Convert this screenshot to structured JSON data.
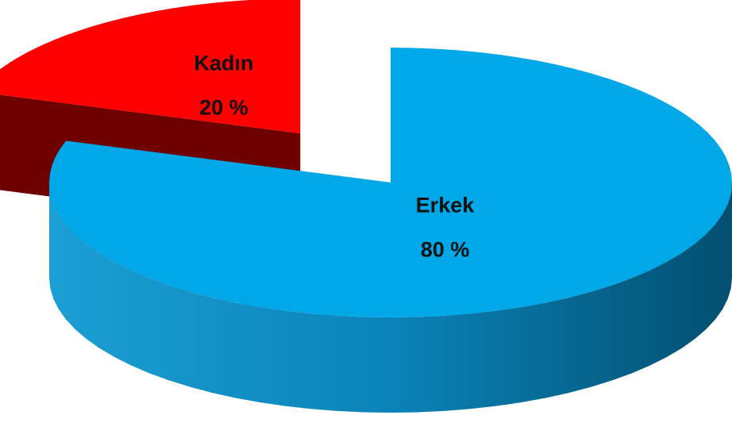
{
  "chart_data": {
    "type": "pie",
    "categories": [
      "Erkek",
      "Kadın"
    ],
    "values": [
      80,
      20
    ],
    "value_labels": [
      "80 %",
      "20 %"
    ],
    "colors": [
      "#00a8e8",
      "#ff0000"
    ]
  }
}
